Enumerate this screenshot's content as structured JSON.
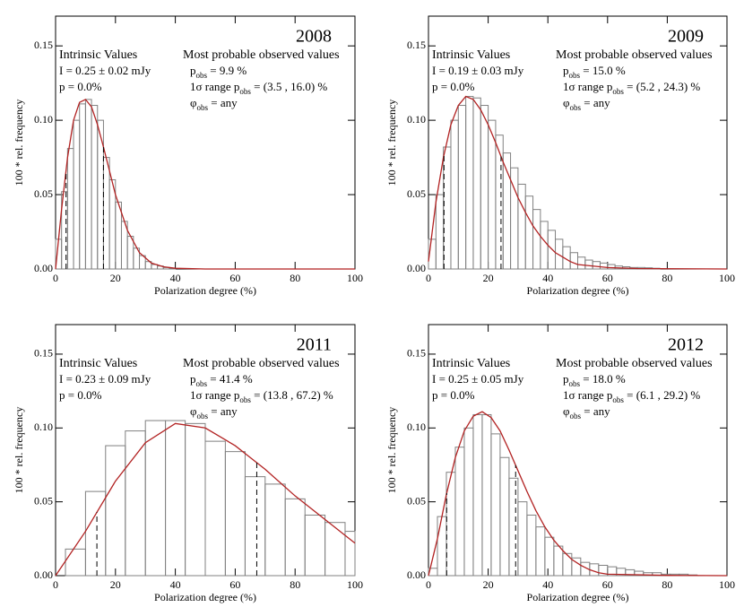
{
  "chart_data": [
    {
      "type": "histogram",
      "title": "2008",
      "x_label": "Polarization degree (%)",
      "y_label": "100 * rel. frequency",
      "xlim": [
        0,
        100
      ],
      "xticks": [
        0,
        20,
        40,
        60,
        80,
        100
      ],
      "ylim": [
        0,
        0.17
      ],
      "yticks": [
        {
          "value": 0,
          "label": "0.00"
        },
        {
          "value": 0.05,
          "label": "0.05"
        },
        {
          "value": 0.1,
          "label": "0.10"
        },
        {
          "value": 0.15,
          "label": "0.15"
        }
      ],
      "bins": [
        0,
        2,
        4,
        6,
        8,
        10,
        12,
        14,
        16,
        18,
        20,
        22,
        24,
        26,
        28,
        30,
        32,
        34,
        36,
        38,
        40
      ],
      "counts": [
        0.02,
        0.052,
        0.081,
        0.1,
        0.111,
        0.114,
        0.11,
        0.1,
        0.075,
        0.06,
        0.045,
        0.032,
        0.022,
        0.014,
        0.009,
        0.005,
        0.003,
        0.002,
        0.001,
        0.0005
      ],
      "color": "#808080",
      "curve": {
        "x": [
          0,
          2,
          4,
          6,
          8,
          10,
          12,
          14,
          16,
          18,
          20,
          24,
          28,
          32,
          36,
          40,
          50,
          100
        ],
        "y": [
          0,
          0.04,
          0.075,
          0.1,
          0.112,
          0.114,
          0.109,
          0.097,
          0.082,
          0.066,
          0.05,
          0.026,
          0.011,
          0.004,
          0.0015,
          0.0005,
          0,
          0
        ],
        "color": "#b22222"
      },
      "range": [
        3.5,
        16.0
      ],
      "left_notes": [
        [
          {
            "text": "Intrinsic Values"
          }
        ],
        [
          {
            "text": "I = 0.25 ± 0.02 mJy"
          }
        ],
        [
          {
            "text": "p =  0.0%"
          }
        ]
      ],
      "right_notes": [
        [
          {
            "text": "Most probable observed values"
          }
        ],
        [
          {
            "text": "p"
          },
          {
            "text": "obs",
            "sub": true
          },
          {
            "text": " =  9.9 %"
          }
        ],
        [
          {
            "text": "1σ range p"
          },
          {
            "text": "obs",
            "sub": true
          },
          {
            "text": " = (3.5 , 16.0) %"
          }
        ],
        [
          {
            "text": "φ"
          },
          {
            "text": "obs",
            "sub": true
          },
          {
            "text": " = any"
          }
        ]
      ]
    },
    {
      "type": "histogram",
      "title": "2009",
      "x_label": "Polarization degree (%)",
      "y_label": "100 * rel. frequency",
      "xlim": [
        0,
        100
      ],
      "xticks": [
        0,
        20,
        40,
        60,
        80,
        100
      ],
      "ylim": [
        0,
        0.17
      ],
      "yticks": [
        {
          "value": 0,
          "label": "0.00"
        },
        {
          "value": 0.05,
          "label": "0.05"
        },
        {
          "value": 0.1,
          "label": "0.10"
        },
        {
          "value": 0.15,
          "label": "0.15"
        }
      ],
      "bins": [
        0,
        2.5,
        5,
        7.5,
        10,
        12.5,
        15,
        17.5,
        20,
        22.5,
        25,
        27.5,
        30,
        32.5,
        35,
        37.5,
        40,
        42.5,
        45,
        47.5,
        50,
        52.5,
        55,
        57.5,
        60,
        62.5,
        65,
        67.5,
        70,
        72.5,
        75,
        77.5
      ],
      "counts": [
        0.02,
        0.05,
        0.082,
        0.1,
        0.11,
        0.116,
        0.115,
        0.11,
        0.1,
        0.09,
        0.078,
        0.068,
        0.057,
        0.049,
        0.04,
        0.032,
        0.026,
        0.02,
        0.015,
        0.011,
        0.008,
        0.006,
        0.005,
        0.004,
        0.003,
        0.002,
        0.0015,
        0.001,
        0.001,
        0.0008,
        0.0005
      ],
      "color": "#808080",
      "curve": {
        "x": [
          0,
          2.5,
          5,
          7.5,
          10,
          12.5,
          15,
          17.5,
          20,
          22.5,
          25,
          27.5,
          30,
          32.5,
          35,
          37.5,
          40,
          42.5,
          45,
          47.5,
          50,
          60,
          70,
          100
        ],
        "y": [
          0.005,
          0.045,
          0.075,
          0.097,
          0.11,
          0.116,
          0.114,
          0.107,
          0.097,
          0.085,
          0.072,
          0.06,
          0.048,
          0.038,
          0.029,
          0.022,
          0.016,
          0.011,
          0.008,
          0.005,
          0.003,
          0.001,
          0.0003,
          0
        ],
        "color": "#b22222"
      },
      "range": [
        5.2,
        24.3
      ],
      "left_notes": [
        [
          {
            "text": "Intrinsic Values"
          }
        ],
        [
          {
            "text": "I = 0.19 ± 0.03 mJy"
          }
        ],
        [
          {
            "text": "p =  0.0%"
          }
        ]
      ],
      "right_notes": [
        [
          {
            "text": "Most probable observed values"
          }
        ],
        [
          {
            "text": "p"
          },
          {
            "text": "obs",
            "sub": true
          },
          {
            "text": " = 15.0 %"
          }
        ],
        [
          {
            "text": "1σ range p"
          },
          {
            "text": "obs",
            "sub": true
          },
          {
            "text": " = (5.2 , 24.3) %"
          }
        ],
        [
          {
            "text": "φ"
          },
          {
            "text": "obs",
            "sub": true
          },
          {
            "text": " = any"
          }
        ]
      ]
    },
    {
      "type": "histogram",
      "title": "2011",
      "x_label": "Polarization degree (%)",
      "y_label": "100 * rel. frequency",
      "xlim": [
        0,
        100
      ],
      "xticks": [
        0,
        20,
        40,
        60,
        80,
        100
      ],
      "ylim": [
        0,
        0.17
      ],
      "yticks": [
        {
          "value": 0,
          "label": "0.00"
        },
        {
          "value": 0.05,
          "label": "0.05"
        },
        {
          "value": 0.1,
          "label": "0.10"
        },
        {
          "value": 0.15,
          "label": "0.15"
        }
      ],
      "bins": [
        3.3,
        10,
        16.7,
        23.3,
        30,
        36.7,
        43.3,
        50,
        56.7,
        63.3,
        70,
        76.7,
        83.3,
        90,
        96.7,
        100
      ],
      "counts": [
        0.018,
        0.057,
        0.088,
        0.098,
        0.105,
        0.105,
        0.103,
        0.091,
        0.084,
        0.067,
        0.062,
        0.052,
        0.041,
        0.036,
        0.03
      ],
      "color": "#808080",
      "curve": {
        "x": [
          0,
          10,
          20,
          30,
          40,
          50,
          60,
          70,
          80,
          90,
          100
        ],
        "y": [
          0,
          0.03,
          0.064,
          0.09,
          0.103,
          0.1,
          0.088,
          0.072,
          0.054,
          0.038,
          0.022
        ],
        "color": "#b22222"
      },
      "range": [
        13.8,
        67.2
      ],
      "left_notes": [
        [
          {
            "text": "Intrinsic Values"
          }
        ],
        [
          {
            "text": "I = 0.23 ± 0.09 mJy"
          }
        ],
        [
          {
            "text": "p =  0.0%"
          }
        ]
      ],
      "right_notes": [
        [
          {
            "text": "Most probable observed values"
          }
        ],
        [
          {
            "text": "p"
          },
          {
            "text": "obs",
            "sub": true
          },
          {
            "text": " = 41.4 %"
          }
        ],
        [
          {
            "text": "1σ range p"
          },
          {
            "text": "obs",
            "sub": true
          },
          {
            "text": " = (13.8 , 67.2) %"
          }
        ],
        [
          {
            "text": "φ"
          },
          {
            "text": "obs",
            "sub": true
          },
          {
            "text": " = any"
          }
        ]
      ]
    },
    {
      "type": "histogram",
      "title": "2012",
      "x_label": "Polarization degree (%)",
      "y_label": "100 * rel. frequency",
      "xlim": [
        0,
        100
      ],
      "xticks": [
        0,
        20,
        40,
        60,
        80,
        100
      ],
      "ylim": [
        0,
        0.17
      ],
      "yticks": [
        {
          "value": 0,
          "label": "0.00"
        },
        {
          "value": 0.05,
          "label": "0.05"
        },
        {
          "value": 0.1,
          "label": "0.10"
        },
        {
          "value": 0.15,
          "label": "0.15"
        }
      ],
      "bins": [
        0,
        3,
        6,
        9,
        12,
        15,
        18,
        21,
        24,
        27,
        30,
        33,
        36,
        39,
        42,
        45,
        48,
        51,
        54,
        57,
        60,
        63,
        66,
        69,
        72,
        75,
        78,
        81,
        84,
        87,
        90
      ],
      "counts": [
        0.005,
        0.04,
        0.07,
        0.087,
        0.1,
        0.109,
        0.109,
        0.096,
        0.08,
        0.066,
        0.05,
        0.041,
        0.033,
        0.026,
        0.02,
        0.015,
        0.012,
        0.009,
        0.008,
        0.007,
        0.006,
        0.005,
        0.004,
        0.003,
        0.002,
        0.002,
        0.001,
        0.001,
        0.001,
        0.0005
      ],
      "color": "#808080",
      "curve": {
        "x": [
          0,
          3,
          6,
          9,
          12,
          15,
          18,
          21,
          24,
          27,
          30,
          33,
          36,
          39,
          42,
          45,
          48,
          51,
          54,
          57,
          60,
          80,
          100
        ],
        "y": [
          0,
          0.025,
          0.055,
          0.08,
          0.098,
          0.108,
          0.111,
          0.107,
          0.098,
          0.085,
          0.071,
          0.057,
          0.044,
          0.033,
          0.024,
          0.017,
          0.011,
          0.007,
          0.004,
          0.002,
          0.001,
          0.0002,
          0
        ],
        "color": "#b22222"
      },
      "range": [
        6.1,
        29.2
      ],
      "left_notes": [
        [
          {
            "text": "Intrinsic Values"
          }
        ],
        [
          {
            "text": "I = 0.25 ± 0.05 mJy"
          }
        ],
        [
          {
            "text": "p =  0.0%"
          }
        ]
      ],
      "right_notes": [
        [
          {
            "text": "Most probable observed values"
          }
        ],
        [
          {
            "text": "p"
          },
          {
            "text": "obs",
            "sub": true
          },
          {
            "text": " = 18.0 %"
          }
        ],
        [
          {
            "text": "1σ range p"
          },
          {
            "text": "obs",
            "sub": true
          },
          {
            "text": " = (6.1 , 29.2) %"
          }
        ],
        [
          {
            "text": "φ"
          },
          {
            "text": "obs",
            "sub": true
          },
          {
            "text": " = any"
          }
        ]
      ]
    }
  ]
}
